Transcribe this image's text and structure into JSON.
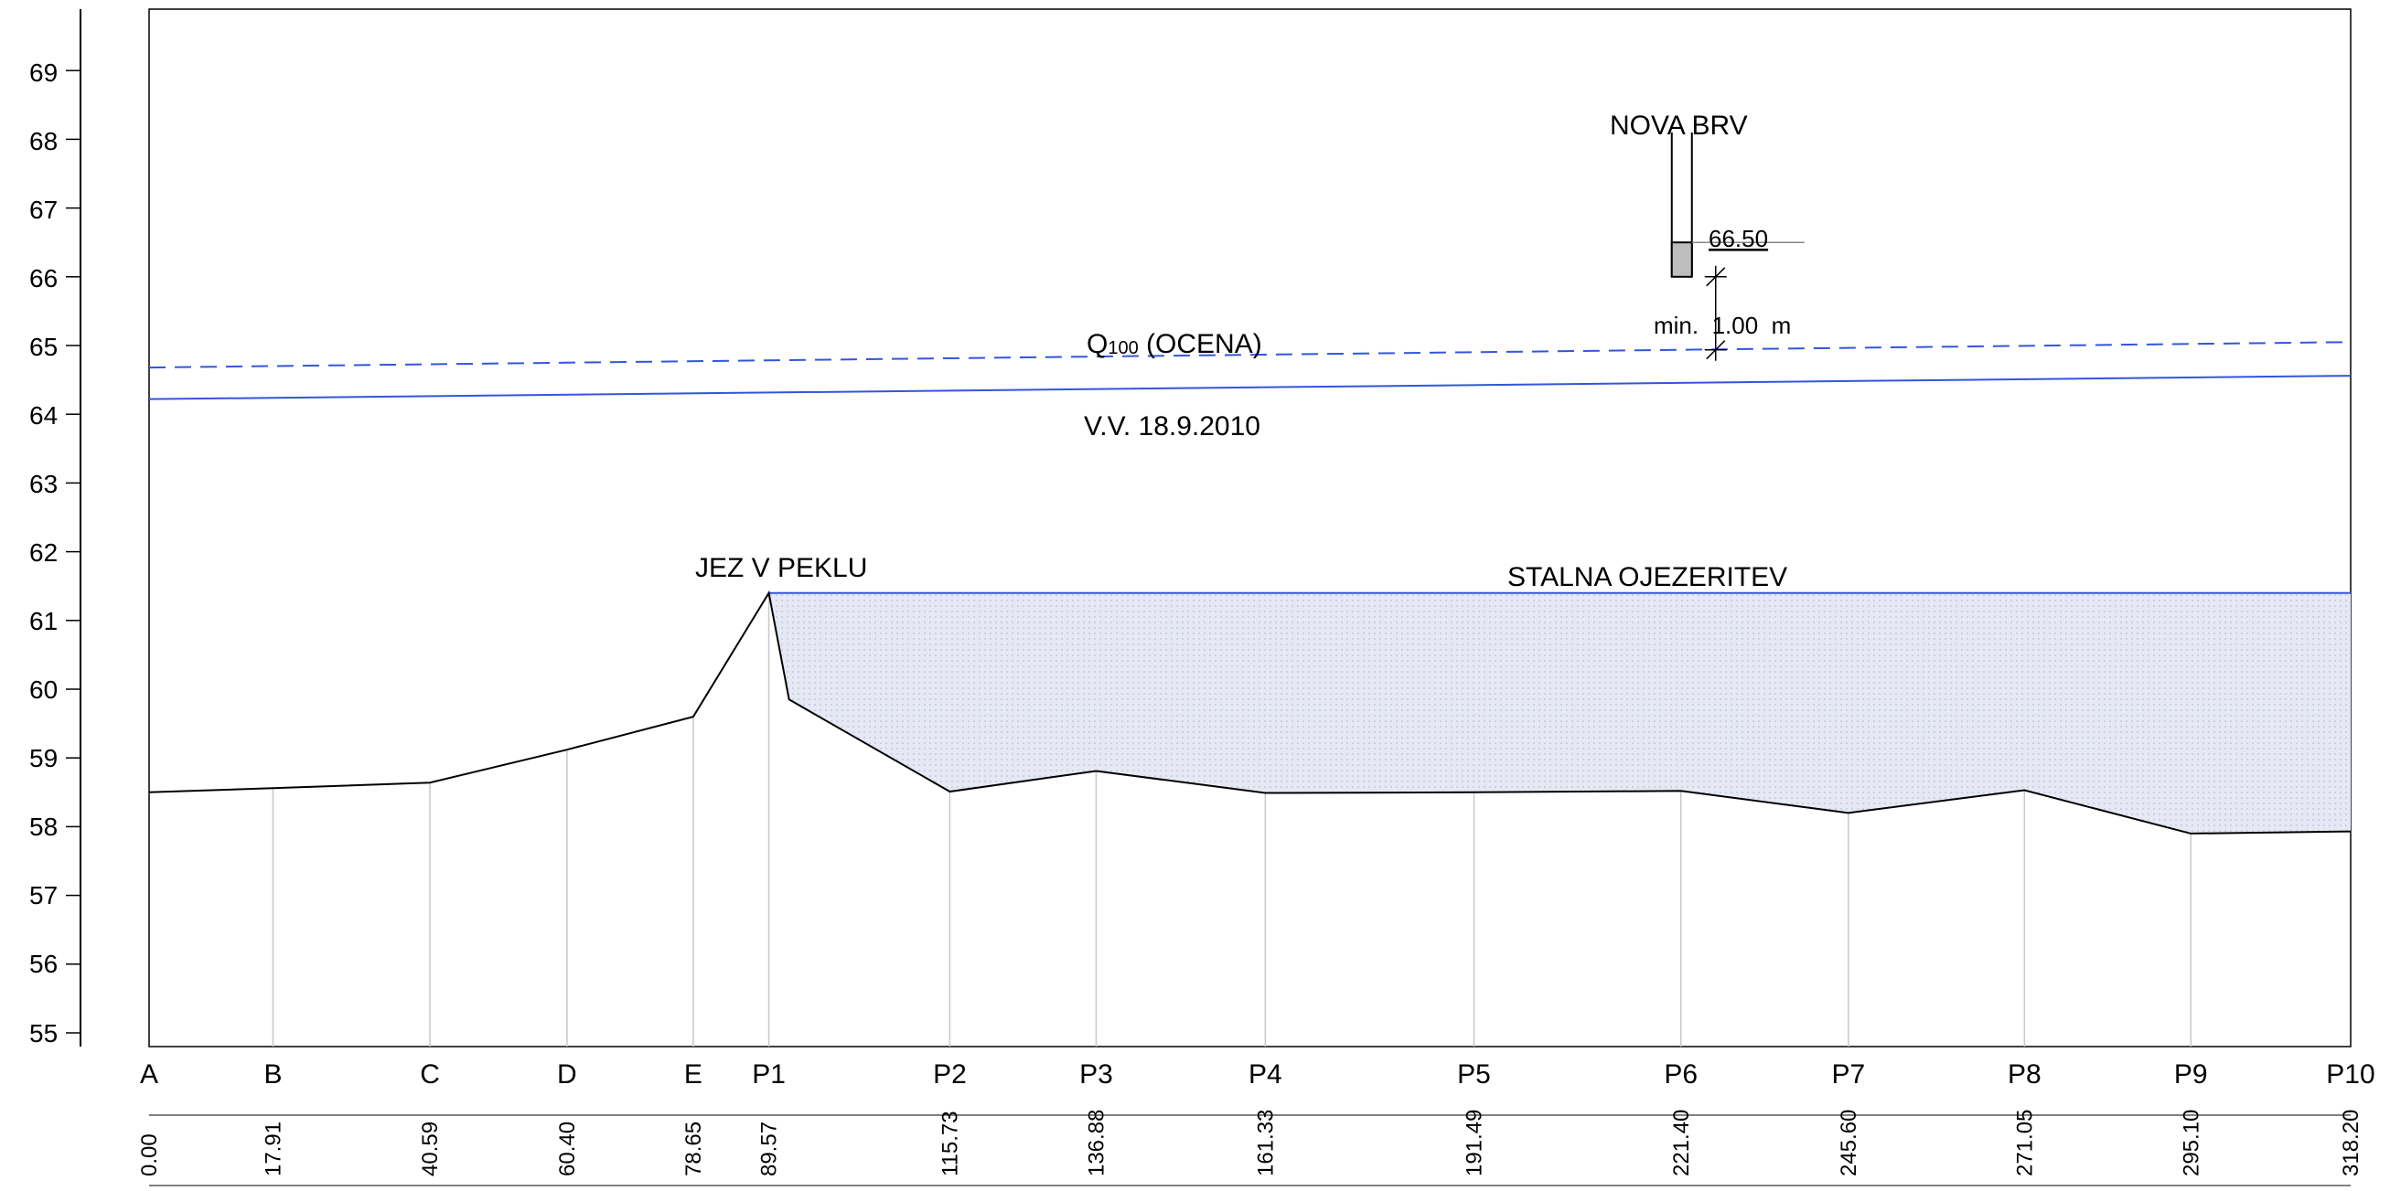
{
  "chart_data": {
    "type": "line",
    "y_ticks": [
      "55",
      "56",
      "57",
      "58",
      "59",
      "60",
      "61",
      "62",
      "63",
      "64",
      "65",
      "66",
      "67",
      "68",
      "69"
    ],
    "ylim": [
      54.8,
      69.9
    ],
    "stations": [
      {
        "label": "A",
        "distance": "0.00",
        "x": 0.0,
        "elev": 58.5
      },
      {
        "label": "B",
        "distance": "17.91",
        "x": 17.91,
        "elev": 58.56
      },
      {
        "label": "C",
        "distance": "40.59",
        "x": 40.59,
        "elev": 58.64
      },
      {
        "label": "D",
        "distance": "60.40",
        "x": 60.4,
        "elev": 59.12
      },
      {
        "label": "E",
        "distance": "78.65",
        "x": 78.65,
        "elev": 59.6
      },
      {
        "label": "P1",
        "distance": "89.57",
        "x": 89.57,
        "elev": 61.4
      },
      {
        "label": "P2",
        "distance": "115.73",
        "x": 115.73,
        "elev": 58.51
      },
      {
        "label": "P3",
        "distance": "136.88",
        "x": 136.88,
        "elev": 58.81
      },
      {
        "label": "P4",
        "distance": "161.33",
        "x": 161.33,
        "elev": 58.49
      },
      {
        "label": "P5",
        "distance": "191.49",
        "x": 191.49,
        "elev": 58.5
      },
      {
        "label": "P6",
        "distance": "221.40",
        "x": 221.4,
        "elev": 58.52
      },
      {
        "label": "P7",
        "distance": "245.60",
        "x": 245.6,
        "elev": 58.2
      },
      {
        "label": "P8",
        "distance": "271.05",
        "x": 271.05,
        "elev": 58.53
      },
      {
        "label": "P9",
        "distance": "295.10",
        "x": 295.1,
        "elev": 57.9
      },
      {
        "label": "P10",
        "distance": "318.20",
        "x": 318.2,
        "elev": 57.93
      }
    ],
    "extra_ground_points": [
      {
        "x": 92.5,
        "elev": 59.85
      }
    ],
    "water_lines": {
      "flood_q100": {
        "label_main": "Q",
        "label_sub": "100",
        "label_rest": " (OCENA)",
        "from": [
          0,
          64.68
        ],
        "to": [
          318.2,
          65.05
        ],
        "color": "#3355dd",
        "style": "dashed"
      },
      "high_water": {
        "label": "V.V. 18.9.2010",
        "from": [
          0,
          64.22
        ],
        "to": [
          318.2,
          64.56
        ],
        "color": "#3355dd",
        "style": "solid"
      },
      "impoundment": {
        "label": "STALNA OJEZERITEV",
        "level": 61.4,
        "from_x": 89.57,
        "to_x": 318.2,
        "color": "#3355dd",
        "fill": "#dfe3f1"
      }
    },
    "weir": {
      "label": "JEZ V PEKLU",
      "x": 89.57
    },
    "bridge": {
      "label": "NOVA BRV",
      "x": 221.4,
      "deck_elev": "66.50",
      "deck_elev_value": 66.5,
      "pier_bottom": 66.0,
      "clearance_label": "min.  1.00  m"
    },
    "colors": {
      "ground": "#000000",
      "water": "#3355dd",
      "grid": "#cccccc",
      "fill": "#dfe3f1"
    }
  }
}
